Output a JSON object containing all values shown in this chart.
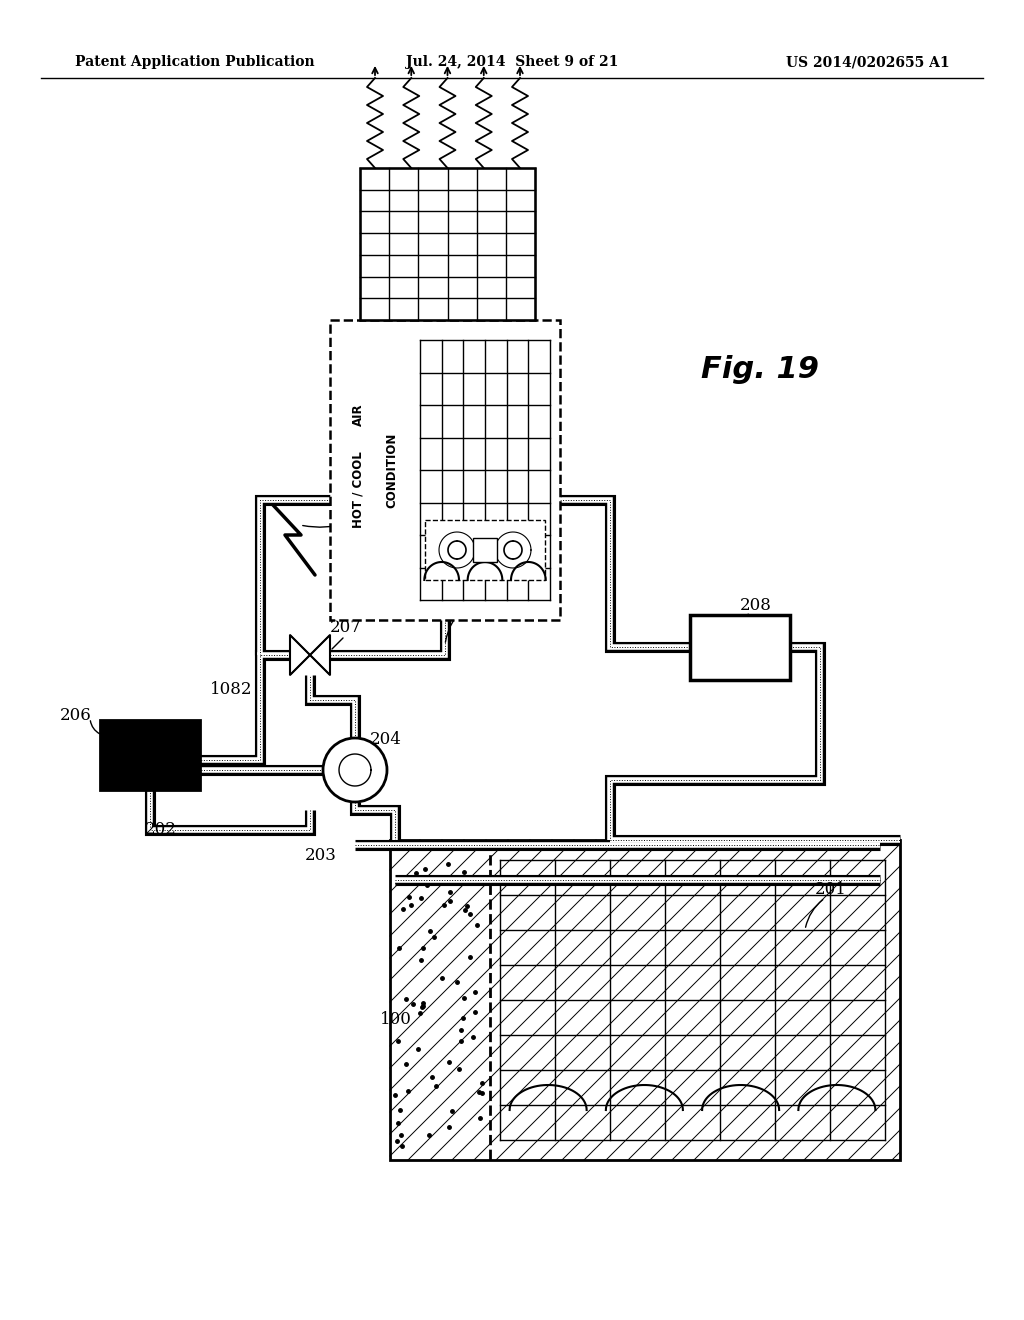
{
  "bg_color": "#ffffff",
  "header_left": "Patent Application Publication",
  "header_center": "Jul. 24, 2014  Sheet 9 of 21",
  "header_right": "US 2014/0202655 A1",
  "fig_label": "Fig. 19"
}
